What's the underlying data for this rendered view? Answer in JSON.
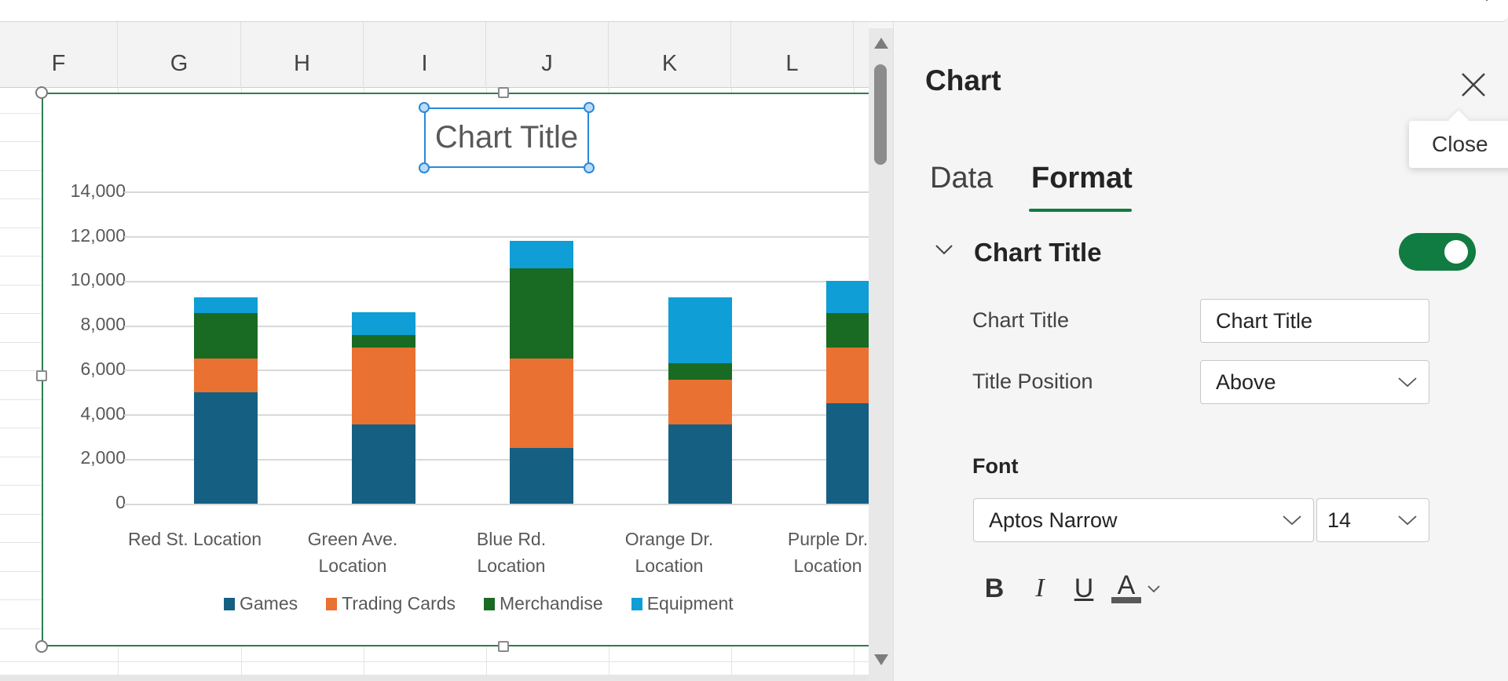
{
  "sheet": {
    "columns": [
      "F",
      "G",
      "H",
      "I",
      "J",
      "K",
      "L"
    ]
  },
  "chart": {
    "title": "Chart Title",
    "y_axis_labels": [
      "14,000",
      "12,000",
      "10,000",
      "8,000",
      "6,000",
      "4,000",
      "2,000",
      "0"
    ],
    "categories": [
      {
        "line1": "Red St. Location",
        "line2": ""
      },
      {
        "line1": "Green Ave.",
        "line2": "Location"
      },
      {
        "line1": "Blue Rd.",
        "line2": "Location"
      },
      {
        "line1": "Orange Dr.",
        "line2": "Location"
      },
      {
        "line1": "Purple Dr.",
        "line2": "Location"
      }
    ],
    "legend": [
      {
        "label": "Games",
        "color": "#156082"
      },
      {
        "label": "Trading Cards",
        "color": "#E97132"
      },
      {
        "label": "Merchandise",
        "color": "#196B24"
      },
      {
        "label": "Equipment",
        "color": "#0F9ED5"
      }
    ]
  },
  "chart_data": {
    "type": "bar",
    "stacked": true,
    "title": "Chart Title",
    "xlabel": "",
    "ylabel": "",
    "ylim": [
      0,
      14000
    ],
    "yticks": [
      0,
      2000,
      4000,
      6000,
      8000,
      10000,
      12000,
      14000
    ],
    "grid": true,
    "legend_position": "bottom",
    "categories": [
      "Red St. Location",
      "Green Ave. Location",
      "Blue Rd. Location",
      "Orange Dr. Location",
      "Purple Location (partially visible)"
    ],
    "series": [
      {
        "name": "Games",
        "color": "#156082",
        "values": [
          5000,
          3550,
          2500,
          3550,
          4500
        ]
      },
      {
        "name": "Trading Cards",
        "color": "#E97132",
        "values": [
          1500,
          3450,
          4000,
          2000,
          2500
        ]
      },
      {
        "name": "Merchandise",
        "color": "#196B24",
        "values": [
          2050,
          550,
          4050,
          750,
          1550
        ]
      },
      {
        "name": "Equipment",
        "color": "#0F9ED5",
        "values": [
          700,
          1050,
          1250,
          2950,
          1450
        ]
      }
    ]
  },
  "panel": {
    "title": "Chart",
    "close_tooltip": "Close",
    "tabs": [
      {
        "label": "Data",
        "active": false
      },
      {
        "label": "Format",
        "active": true
      }
    ],
    "section": {
      "title": "Chart Title",
      "toggle_on": true,
      "chart_title_label": "Chart Title",
      "chart_title_value": "Chart Title",
      "title_position_label": "Title Position",
      "title_position_value": "Above"
    },
    "font": {
      "label": "Font",
      "family": "Aptos Narrow",
      "size": "14",
      "bold": "B",
      "italic": "I",
      "underline": "U",
      "color": "A"
    },
    "accent_color": "#107C41"
  }
}
